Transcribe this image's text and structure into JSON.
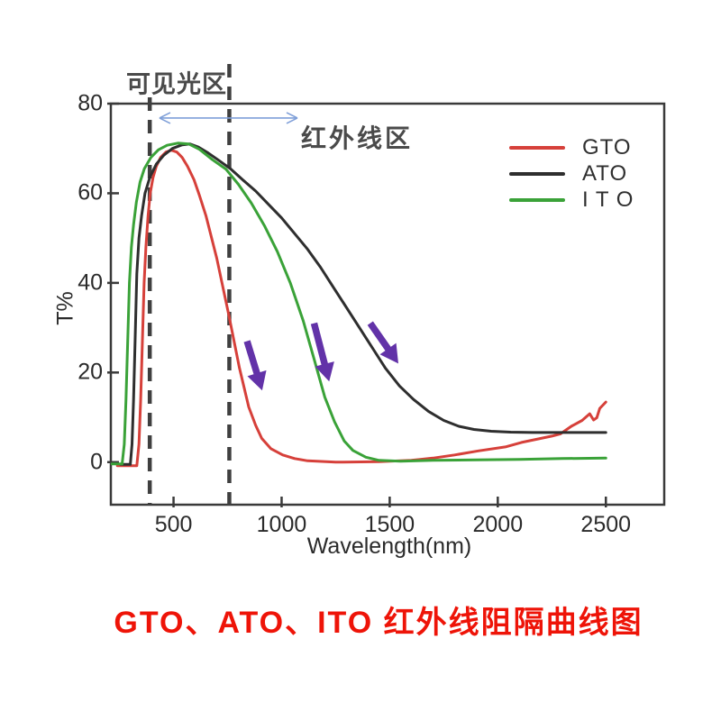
{
  "title": "GTO、ATO、ITO 红外线阻隔曲线图",
  "title_color": "#ee1408",
  "chart_data": {
    "type": "line",
    "xlabel": "Wavelength(nm)",
    "ylabel": "T%",
    "xlim": [
      210,
      2770
    ],
    "ylim": [
      -9.5,
      80
    ],
    "x_ticks": [
      500,
      1000,
      1500,
      2000,
      2500
    ],
    "y_ticks": [
      0,
      20,
      40,
      60,
      80
    ],
    "grid": false,
    "legend_position": "top-right-inside",
    "axis_color": "#3a3a3a",
    "series": [
      {
        "name": "GTO",
        "legend_label": "GTO",
        "color": "#d6403a",
        "points": [
          [
            240,
            -0.8
          ],
          [
            330,
            -0.8
          ],
          [
            340,
            4
          ],
          [
            348,
            14
          ],
          [
            356,
            27
          ],
          [
            364,
            40
          ],
          [
            372,
            48
          ],
          [
            382,
            55
          ],
          [
            392,
            60
          ],
          [
            405,
            63.5
          ],
          [
            420,
            66
          ],
          [
            440,
            68
          ],
          [
            465,
            69.2
          ],
          [
            490,
            69.6
          ],
          [
            515,
            69.2
          ],
          [
            540,
            68
          ],
          [
            565,
            66
          ],
          [
            595,
            63
          ],
          [
            620,
            59.5
          ],
          [
            650,
            55
          ],
          [
            700,
            45.5
          ],
          [
            755,
            33
          ],
          [
            805,
            21
          ],
          [
            848,
            12.3
          ],
          [
            880,
            8.2
          ],
          [
            908,
            5.3
          ],
          [
            950,
            3
          ],
          [
            1005,
            1.6
          ],
          [
            1060,
            0.8
          ],
          [
            1120,
            0.3
          ],
          [
            1250,
            0
          ],
          [
            1450,
            0.1
          ],
          [
            1600,
            0.4
          ],
          [
            1700,
            0.9
          ],
          [
            1800,
            1.6
          ],
          [
            1910,
            2.5
          ],
          [
            2035,
            3.4
          ],
          [
            2110,
            4.4
          ],
          [
            2190,
            5.2
          ],
          [
            2250,
            5.8
          ],
          [
            2290,
            6.3
          ],
          [
            2340,
            8
          ],
          [
            2390,
            9.3
          ],
          [
            2425,
            10.8
          ],
          [
            2443,
            9.4
          ],
          [
            2458,
            9.9
          ],
          [
            2472,
            12
          ],
          [
            2500,
            13.4
          ]
        ]
      },
      {
        "name": "ATO",
        "legend_label": "ATO",
        "color": "#2e2e2e",
        "points": [
          [
            255,
            -0.5
          ],
          [
            300,
            -0.5
          ],
          [
            308,
            4
          ],
          [
            315,
            14
          ],
          [
            322,
            27
          ],
          [
            330,
            42
          ],
          [
            340,
            50
          ],
          [
            352,
            55
          ],
          [
            368,
            60
          ],
          [
            390,
            63.5
          ],
          [
            420,
            66.5
          ],
          [
            455,
            68.5
          ],
          [
            495,
            70
          ],
          [
            540,
            70.8
          ],
          [
            575,
            71
          ],
          [
            615,
            70.3
          ],
          [
            660,
            69
          ],
          [
            705,
            67.5
          ],
          [
            763,
            65.5
          ],
          [
            820,
            63
          ],
          [
            880,
            60.5
          ],
          [
            940,
            57.5
          ],
          [
            1000,
            54.5
          ],
          [
            1060,
            51
          ],
          [
            1120,
            47.5
          ],
          [
            1180,
            43.5
          ],
          [
            1240,
            39
          ],
          [
            1300,
            34.5
          ],
          [
            1360,
            30
          ],
          [
            1420,
            25.5
          ],
          [
            1480,
            21
          ],
          [
            1545,
            17
          ],
          [
            1610,
            14
          ],
          [
            1680,
            11.3
          ],
          [
            1750,
            9.3
          ],
          [
            1820,
            8
          ],
          [
            1890,
            7.3
          ],
          [
            1970,
            6.9
          ],
          [
            2060,
            6.7
          ],
          [
            2160,
            6.6
          ],
          [
            2300,
            6.6
          ],
          [
            2500,
            6.6
          ]
        ]
      },
      {
        "name": "ITO",
        "legend_label": "I T O",
        "color": "#3aa238",
        "points": [
          [
            215,
            -0.4
          ],
          [
            262,
            -0.4
          ],
          [
            272,
            4
          ],
          [
            280,
            14
          ],
          [
            288,
            27
          ],
          [
            296,
            40
          ],
          [
            305,
            48
          ],
          [
            315,
            53
          ],
          [
            328,
            58
          ],
          [
            345,
            62.5
          ],
          [
            365,
            65.5
          ],
          [
            395,
            68
          ],
          [
            430,
            69.7
          ],
          [
            470,
            70.7
          ],
          [
            520,
            71.2
          ],
          [
            570,
            71
          ],
          [
            620,
            69.8
          ],
          [
            680,
            67.5
          ],
          [
            742,
            65.4
          ],
          [
            800,
            62
          ],
          [
            860,
            57.8
          ],
          [
            920,
            52.8
          ],
          [
            980,
            47
          ],
          [
            1040,
            40
          ],
          [
            1100,
            31.5
          ],
          [
            1150,
            23
          ],
          [
            1200,
            14.5
          ],
          [
            1245,
            9
          ],
          [
            1290,
            4.7
          ],
          [
            1330,
            2.6
          ],
          [
            1390,
            1.1
          ],
          [
            1450,
            0.4
          ],
          [
            1550,
            0.2
          ],
          [
            1700,
            0.4
          ],
          [
            1900,
            0.5
          ],
          [
            2100,
            0.6
          ],
          [
            2300,
            0.8
          ],
          [
            2500,
            0.9
          ]
        ]
      }
    ],
    "annotations": {
      "visible_label": "可见光区",
      "infrared_label": "红外线区",
      "dashed_lines_nm": [
        390,
        758
      ],
      "dashed_color": "#3f3f3f",
      "range_arrow": {
        "x1_nm": 435,
        "x2_nm": 1073,
        "t": 76.8,
        "color": "#7f9fd8"
      },
      "down_arrows": [
        {
          "x1_nm": 840,
          "t1": 27,
          "x2_nm": 910,
          "t2": 16
        },
        {
          "x1_nm": 1150,
          "t1": 31,
          "x2_nm": 1220,
          "t2": 18
        },
        {
          "x1_nm": 1410,
          "t1": 31,
          "x2_nm": 1540,
          "t2": 22
        }
      ],
      "arrow_color": "#6232a8"
    }
  }
}
